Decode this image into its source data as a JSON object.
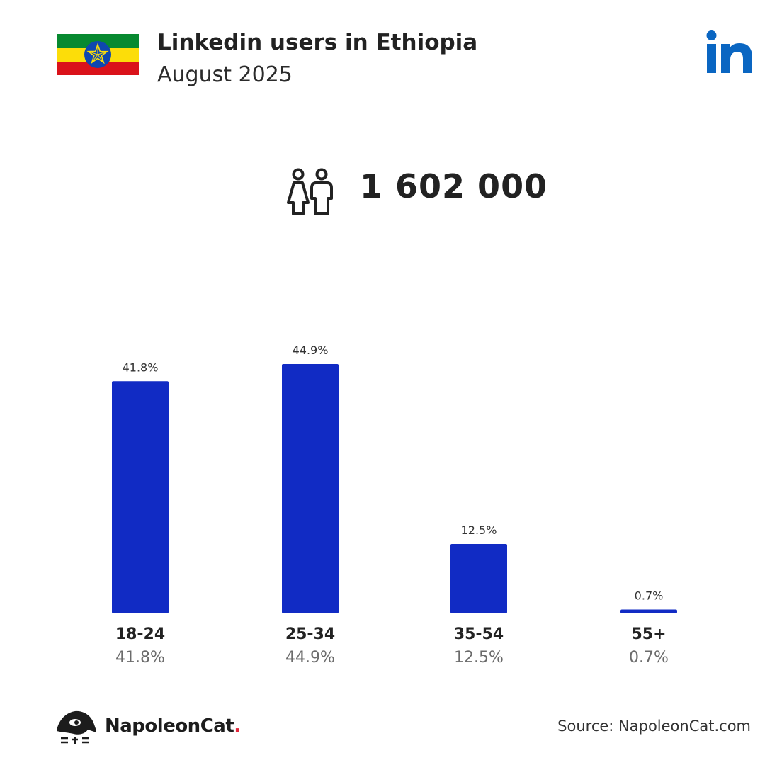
{
  "header": {
    "title": "Linkedin users in Ethiopia",
    "subtitle": "August 2025",
    "flag_icon": "ethiopia-flag-icon",
    "platform_icon": "linkedin-icon"
  },
  "summary": {
    "total_users": "1 602 000",
    "icon": "people-icon"
  },
  "colors": {
    "bar": "#112bc4",
    "linkedin": "#0a66c2",
    "brand_dot": "#e2263a",
    "flag_green": "#078930",
    "flag_yellow": "#fcdd09",
    "flag_red": "#da121a",
    "flag_emblem": "#0f47af"
  },
  "chart_data": {
    "type": "bar",
    "categories": [
      "18-24",
      "25-34",
      "35-54",
      "55+"
    ],
    "values": [
      41.8,
      44.9,
      12.5,
      0.7
    ],
    "data_labels": [
      "41.8%",
      "44.9%",
      "12.5%",
      "0.7%"
    ],
    "title": "",
    "xlabel": "",
    "ylabel": "",
    "ylim": [
      0,
      44.9
    ],
    "grid": false,
    "legend": "none"
  },
  "footer": {
    "brand_name": "NapoleonCat",
    "brand_dot": ".",
    "brand_icon": "napoleoncat-logo-icon",
    "source": "Source: NapoleonCat.com"
  }
}
